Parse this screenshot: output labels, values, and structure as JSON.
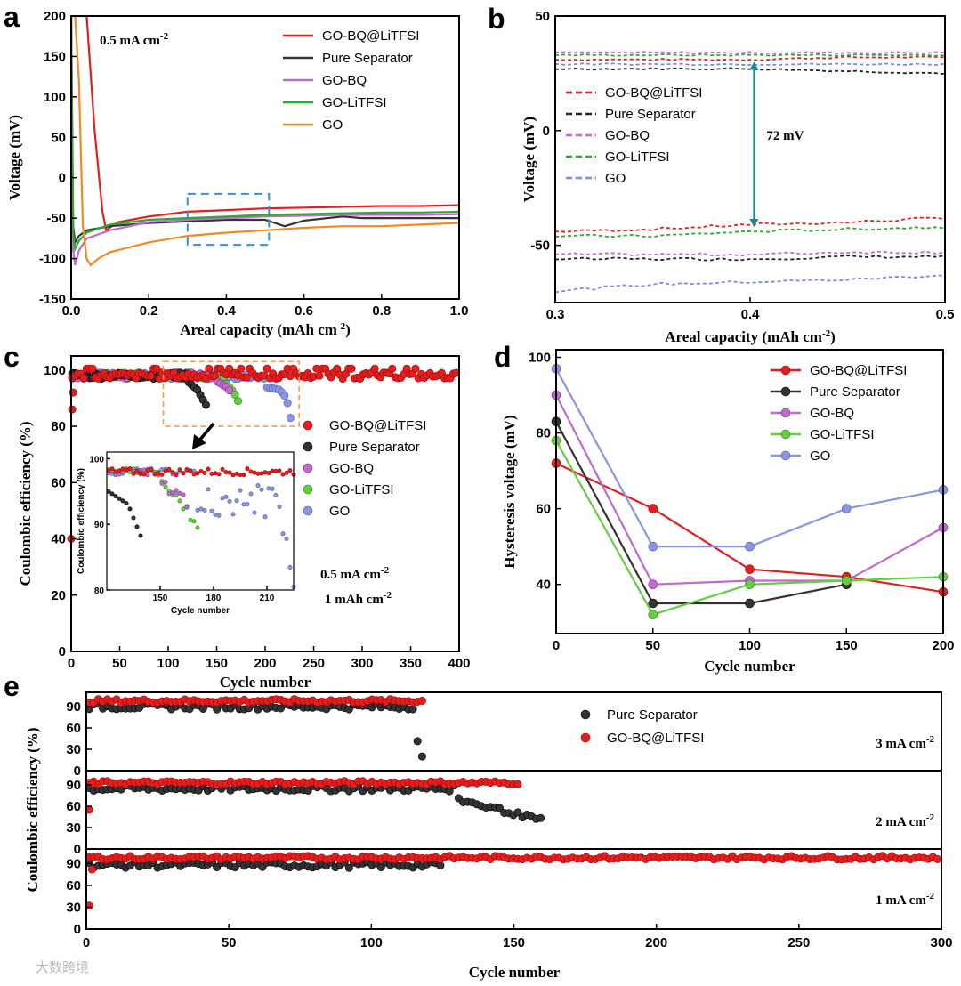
{
  "chart_data": [
    {
      "panel": "a",
      "type": "line",
      "annotation": "0.5 mA cm⁻²",
      "xlabel": "Areal capacity (mAh cm⁻²)",
      "ylabel": "Voltage (mV)",
      "xlim": [
        0,
        1.0
      ],
      "ylim": [
        -150,
        200
      ],
      "xticks": [
        "0.0",
        "0.2",
        "0.4",
        "0.6",
        "0.8",
        "1.0"
      ],
      "yticks": [
        "-150",
        "-100",
        "-50",
        "0",
        "50",
        "100",
        "150",
        "200"
      ],
      "series": [
        {
          "name": "GO-BQ@LiTFSI",
          "color": "#e02020",
          "x": [
            0.005,
            0.01,
            0.02,
            0.04,
            0.06,
            0.08,
            0.09,
            0.12,
            0.2,
            0.3,
            0.4,
            0.5,
            0.6,
            0.7,
            0.8,
            0.9,
            1.0
          ],
          "y": [
            200,
            200,
            200,
            200,
            60,
            -40,
            -65,
            -55,
            -48,
            -42,
            -40,
            -38,
            -37,
            -36,
            -35,
            -35,
            -34
          ]
        },
        {
          "name": "Pure Separator",
          "color": "#333333",
          "x": [
            0.0,
            0.005,
            0.01,
            0.02,
            0.04,
            0.1,
            0.2,
            0.3,
            0.4,
            0.5,
            0.55,
            0.6,
            0.7,
            0.75,
            0.8,
            0.9,
            1.0
          ],
          "y": [
            200,
            -60,
            -80,
            -72,
            -65,
            -60,
            -56,
            -54,
            -52,
            -52,
            -60,
            -53,
            -48,
            -50,
            -50,
            -50,
            -50
          ]
        },
        {
          "name": "GO-BQ",
          "color": "#c06ad0",
          "x": [
            0.0,
            0.005,
            0.01,
            0.02,
            0.04,
            0.1,
            0.2,
            0.3,
            0.4,
            0.5,
            0.6,
            0.7,
            0.8,
            0.9,
            1.0
          ],
          "y": [
            200,
            -90,
            -108,
            -90,
            -75,
            -65,
            -55,
            -52,
            -50,
            -48,
            -47,
            -46,
            -46,
            -46,
            -45
          ]
        },
        {
          "name": "GO-LiTFSI",
          "color": "#2ea82e",
          "x": [
            0.0,
            0.005,
            0.01,
            0.02,
            0.04,
            0.1,
            0.2,
            0.3,
            0.4,
            0.5,
            0.6,
            0.7,
            0.8,
            0.9,
            1.0
          ],
          "y": [
            200,
            -70,
            -88,
            -78,
            -68,
            -58,
            -52,
            -50,
            -48,
            -46,
            -45,
            -44,
            -43,
            -43,
            -42
          ]
        },
        {
          "name": "GO",
          "color": "#f08a24",
          "x": [
            0.0,
            0.01,
            0.02,
            0.03,
            0.04,
            0.05,
            0.07,
            0.1,
            0.2,
            0.3,
            0.4,
            0.5,
            0.6,
            0.7,
            0.8,
            0.9,
            1.0
          ],
          "y": [
            200,
            200,
            120,
            -60,
            -100,
            -108,
            -100,
            -92,
            -80,
            -72,
            -68,
            -65,
            -62,
            -60,
            -60,
            -58,
            -56
          ]
        }
      ]
    },
    {
      "panel": "b",
      "type": "line",
      "annotation": "72 mV",
      "xlabel": "Areal capacity (mAh cm⁻²)",
      "ylabel": "Voltage (mV)",
      "xlim": [
        0.3,
        0.5
      ],
      "ylim": [
        -75,
        50
      ],
      "xticks": [
        "0.3",
        "0.4",
        "0.5"
      ],
      "yticks": [
        "-50",
        "0",
        "50"
      ],
      "series": [
        {
          "name": "GO-BQ@LiTFSI",
          "color": "#e02020",
          "x": [
            0.3,
            0.35,
            0.4,
            0.45,
            0.5
          ],
          "y_charge": [
            31,
            31,
            31,
            32,
            32
          ],
          "y_discharge": [
            -44,
            -43,
            -41,
            -40,
            -38
          ]
        },
        {
          "name": "Pure Separator",
          "color": "#222222",
          "x": [
            0.3,
            0.35,
            0.4,
            0.45,
            0.5
          ],
          "y_charge": [
            27,
            27,
            27,
            26,
            25
          ],
          "y_discharge": [
            -56,
            -56,
            -56,
            -55,
            -55
          ]
        },
        {
          "name": "GO-BQ",
          "color": "#c06ad0",
          "x": [
            0.3,
            0.35,
            0.4,
            0.45,
            0.5
          ],
          "y_charge": [
            34,
            34,
            34,
            34,
            34
          ],
          "y_discharge": [
            -54,
            -54,
            -54,
            -53,
            -53
          ]
        },
        {
          "name": "GO-LiTFSI",
          "color": "#2ea82e",
          "x": [
            0.3,
            0.35,
            0.4,
            0.45,
            0.5
          ],
          "y_charge": [
            33,
            33,
            33,
            33,
            33
          ],
          "y_discharge": [
            -46,
            -46,
            -44,
            -43,
            -42
          ]
        },
        {
          "name": "GO",
          "color": "#7a8ae0",
          "x": [
            0.3,
            0.35,
            0.4,
            0.45,
            0.5
          ],
          "y_charge": [
            29,
            29,
            29,
            29,
            29
          ],
          "y_discharge": [
            -70,
            -67,
            -66,
            -65,
            -63
          ]
        }
      ],
      "gap_mV": 72
    },
    {
      "panel": "c",
      "type": "scatter",
      "annotation": [
        "0.5 mA cm⁻²",
        "1 mAh cm⁻²"
      ],
      "xlabel": "Cycle number",
      "ylabel": "Coulombic efficiency (%)",
      "xlim": [
        0,
        400
      ],
      "ylim": [
        0,
        105
      ],
      "xticks": [
        "0",
        "50",
        "100",
        "150",
        "200",
        "250",
        "300",
        "350",
        "400"
      ],
      "yticks": [
        "0",
        "20",
        "40",
        "60",
        "80",
        "100"
      ],
      "series": [
        {
          "name": "GO-BQ@LiTFSI",
          "color": "#e02020",
          "x_range": [
            1,
            398
          ],
          "level": 98,
          "first_points": [
            40,
            86,
            92
          ]
        },
        {
          "name": "Pure Separator",
          "color": "#333333",
          "x_range": [
            1,
            140
          ],
          "level": 98,
          "tail": [
            [
              120,
              96
            ],
            [
              130,
              93
            ],
            [
              135,
              90
            ],
            [
              140,
              87
            ]
          ]
        },
        {
          "name": "GO-BQ",
          "color": "#c06ad0",
          "x_range": [
            1,
            165
          ],
          "level": 98,
          "tail": [
            [
              150,
              96
            ],
            [
              160,
              94
            ],
            [
              165,
              92
            ]
          ]
        },
        {
          "name": "GO-LiTFSI",
          "color": "#66cc44",
          "x_range": [
            1,
            172
          ],
          "level": 98,
          "tail": [
            [
              160,
              95
            ],
            [
              168,
              92
            ],
            [
              172,
              89
            ]
          ]
        },
        {
          "name": "GO",
          "color": "#8a96e0",
          "x_range": [
            1,
            226
          ],
          "level": 98,
          "tail": [
            [
              200,
              94
            ],
            [
              215,
              93
            ],
            [
              222,
              90
            ],
            [
              226,
              83
            ]
          ]
        }
      ],
      "inset": {
        "xlabel": "Cycle number",
        "ylabel": "Coulombic efficiency (%)",
        "xticks": [
          "150",
          "180",
          "210"
        ],
        "yticks": [
          "80",
          "90",
          "100"
        ]
      }
    },
    {
      "panel": "d",
      "type": "line",
      "xlabel": "Cycle number",
      "ylabel": "Hysteresis voltage (mV)",
      "xlim": [
        0,
        200
      ],
      "ylim": [
        27,
        102
      ],
      "xticks": [
        "0",
        "50",
        "100",
        "150",
        "200"
      ],
      "yticks": [
        "40",
        "60",
        "80",
        "100"
      ],
      "series": [
        {
          "name": "GO-BQ@LiTFSI",
          "color": "#e02020",
          "x": [
            0,
            50,
            100,
            150,
            200
          ],
          "y": [
            72,
            60,
            44,
            42,
            38
          ]
        },
        {
          "name": "Pure Separator",
          "color": "#333333",
          "x": [
            0,
            50,
            100,
            150
          ],
          "y": [
            83,
            35,
            35,
            40
          ]
        },
        {
          "name": "GO-BQ",
          "color": "#c06ad0",
          "x": [
            0,
            50,
            100,
            150,
            200
          ],
          "y": [
            90,
            40,
            41,
            41,
            55
          ]
        },
        {
          "name": "GO-LiTFSI",
          "color": "#66cc44",
          "x": [
            0,
            50,
            100,
            150,
            200
          ],
          "y": [
            78,
            32,
            40,
            41,
            42
          ]
        },
        {
          "name": "GO",
          "color": "#8a96e0",
          "x": [
            0,
            50,
            100,
            150,
            200
          ],
          "y": [
            97,
            50,
            50,
            60,
            65
          ]
        }
      ]
    },
    {
      "panel": "e",
      "type": "scatter",
      "xlabel": "Cycle number",
      "ylabel": "Coulombic efficiency (%)",
      "xlim": [
        0,
        300
      ],
      "xticks": [
        "0",
        "50",
        "100",
        "150",
        "200",
        "250",
        "300"
      ],
      "subpanels": [
        {
          "rate": "3 mA cm⁻²",
          "yticks": [
            "0",
            "30",
            "60",
            "90"
          ],
          "ylim": [
            0,
            110
          ],
          "series": [
            {
              "name": "Pure Separator",
              "color": "#333333",
              "x_range": [
                1,
                118
              ],
              "level": 90,
              "tail": [
                [
                  115,
                  65
                ],
                [
                  116,
                  45
                ],
                [
                  117,
                  18
                ],
                [
                  118,
                  18
                ]
              ]
            },
            {
              "name": "GO-BQ@LiTFSI",
              "color": "#e02020",
              "x_range": [
                1,
                118
              ],
              "level": 98
            }
          ]
        },
        {
          "rate": "2 mA cm⁻²",
          "yticks": [
            "0",
            "30",
            "60",
            "90"
          ],
          "ylim": [
            0,
            110
          ],
          "series": [
            {
              "name": "Pure Separator",
              "color": "#333333",
              "x_range": [
                1,
                160
              ],
              "level": 85,
              "tail": [
                [
                  130,
                  70
                ],
                [
                  140,
                  60
                ],
                [
                  150,
                  50
                ],
                [
                  160,
                  40
                ]
              ]
            },
            {
              "name": "GO-BQ@LiTFSI",
              "color": "#e02020",
              "x_range": [
                1,
                152
              ],
              "level": 93,
              "first_points": [
                55,
                92
              ]
            }
          ]
        },
        {
          "rate": "1 mA cm⁻²",
          "yticks": [
            "0",
            "30",
            "60",
            "90"
          ],
          "ylim": [
            0,
            110
          ],
          "series": [
            {
              "name": "Pure Separator",
              "color": "#333333",
              "x_range": [
                1,
                125
              ],
              "level": 88
            },
            {
              "name": "GO-BQ@LiTFSI",
              "color": "#e02020",
              "x_range": [
                1,
                300
              ],
              "level": 98,
              "first_points": [
                32,
                82
              ]
            }
          ]
        }
      ],
      "legend": [
        "Pure Separator",
        "GO-BQ@LiTFSI"
      ]
    }
  ],
  "panel_letters": [
    "a",
    "b",
    "c",
    "d",
    "e"
  ],
  "watermark": "大数跨境"
}
